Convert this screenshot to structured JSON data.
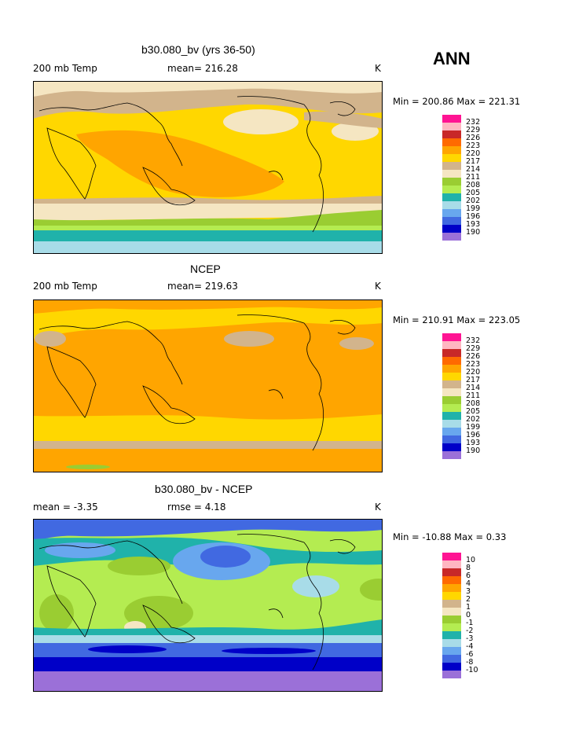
{
  "season": "ANN",
  "colors": {
    "c190": "#9b70d8",
    "c193": "#0000c8",
    "c196": "#4169e1",
    "c199": "#68a7ee",
    "c202": "#a8dce8",
    "c205": "#20b2aa",
    "c208": "#9acd32",
    "c211": "#b4ec51",
    "c214": "#f5e6c2",
    "c217": "#d2b48c",
    "c220": "#ffd700",
    "c223": "#ffa500",
    "c226": "#ff6a00",
    "c229": "#c82828",
    "c232": "#ffb6c1",
    "cTop": "#ff1493"
  },
  "chart_data": [
    {
      "type": "heatmap",
      "title": "b30.080_bv (yrs 36-50)",
      "left_label": "200 mb Temp",
      "stat_label": "mean= 216.28",
      "units": "K",
      "min_max": "Min = 200.86  Max = 221.31",
      "mean": 216.28,
      "min": 200.86,
      "max": 221.31,
      "legend_levels": [
        "232",
        "229",
        "226",
        "223",
        "220",
        "217",
        "214",
        "211",
        "208",
        "205",
        "202",
        "199",
        "196",
        "193",
        "190"
      ]
    },
    {
      "type": "heatmap",
      "title": "NCEP",
      "left_label": "200 mb Temp",
      "stat_label": "mean= 219.63",
      "units": "K",
      "min_max": "Min = 210.91  Max = 223.05",
      "mean": 219.63,
      "min": 210.91,
      "max": 223.05,
      "legend_levels": [
        "232",
        "229",
        "226",
        "223",
        "220",
        "217",
        "214",
        "211",
        "208",
        "205",
        "202",
        "199",
        "196",
        "193",
        "190"
      ]
    },
    {
      "type": "heatmap",
      "title": "b30.080_bv - NCEP",
      "left_label": "mean =   -3.35",
      "stat_label": "rmse =    4.18",
      "units": "K",
      "min_max": "Min = -10.88  Max =    0.33",
      "mean": -3.35,
      "rmse": 4.18,
      "min": -10.88,
      "max": 0.33,
      "legend_levels": [
        "10",
        "8",
        "6",
        "4",
        "3",
        "2",
        "1",
        "0",
        "-1",
        "-2",
        "-3",
        "-4",
        "-6",
        "-8",
        "-10"
      ]
    }
  ]
}
